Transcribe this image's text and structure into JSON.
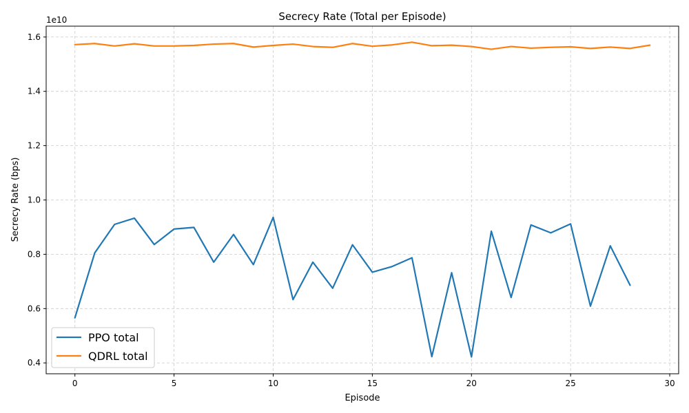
{
  "chart_data": {
    "type": "line",
    "title": "Secrecy Rate (Total per Episode)",
    "xlabel": "Episode",
    "ylabel": "Secrecy Rate (bps)",
    "y_offset_label": "1e10",
    "y_scale": 10000000000,
    "xlim": [
      -1.45,
      30.45
    ],
    "ylim": [
      0.36,
      1.64
    ],
    "xticks": [
      0,
      5,
      10,
      15,
      20,
      25,
      30
    ],
    "yticks": [
      0.4,
      0.6,
      0.8,
      1.0,
      1.2,
      1.4,
      1.6
    ],
    "xtick_labels": [
      "0",
      "5",
      "10",
      "15",
      "20",
      "25",
      "30"
    ],
    "ytick_labels": [
      "0.4",
      "0.6",
      "0.8",
      "1.0",
      "1.2",
      "1.4",
      "1.6"
    ],
    "grid": true,
    "legend_position": "bottom-left",
    "series": [
      {
        "name": "PPO total",
        "color": "#1f77b4",
        "x": [
          0,
          1,
          2,
          3,
          4,
          5,
          6,
          7,
          8,
          9,
          10,
          11,
          12,
          13,
          14,
          15,
          16,
          17,
          18,
          19,
          20,
          21,
          22,
          23,
          24,
          25,
          26,
          27,
          28
        ],
        "y": [
          0.566,
          0.805,
          0.91,
          0.933,
          0.836,
          0.893,
          0.899,
          0.771,
          0.873,
          0.762,
          0.936,
          0.633,
          0.771,
          0.675,
          0.835,
          0.734,
          0.755,
          0.787,
          0.423,
          0.732,
          0.422,
          0.885,
          0.641,
          0.908,
          0.879,
          0.912,
          0.609,
          0.831,
          0.686
        ]
      },
      {
        "name": "QDRL total",
        "color": "#ff7f0e",
        "x": [
          0,
          1,
          2,
          3,
          4,
          5,
          6,
          7,
          8,
          9,
          10,
          11,
          12,
          13,
          14,
          15,
          16,
          17,
          18,
          19,
          20,
          21,
          22,
          23,
          24,
          25,
          26,
          27,
          28,
          29
        ],
        "y": [
          1.572,
          1.576,
          1.567,
          1.575,
          1.567,
          1.567,
          1.569,
          1.574,
          1.576,
          1.563,
          1.569,
          1.574,
          1.565,
          1.562,
          1.576,
          1.566,
          1.571,
          1.581,
          1.568,
          1.57,
          1.565,
          1.555,
          1.565,
          1.559,
          1.562,
          1.564,
          1.558,
          1.563,
          1.558,
          1.57
        ]
      }
    ]
  }
}
